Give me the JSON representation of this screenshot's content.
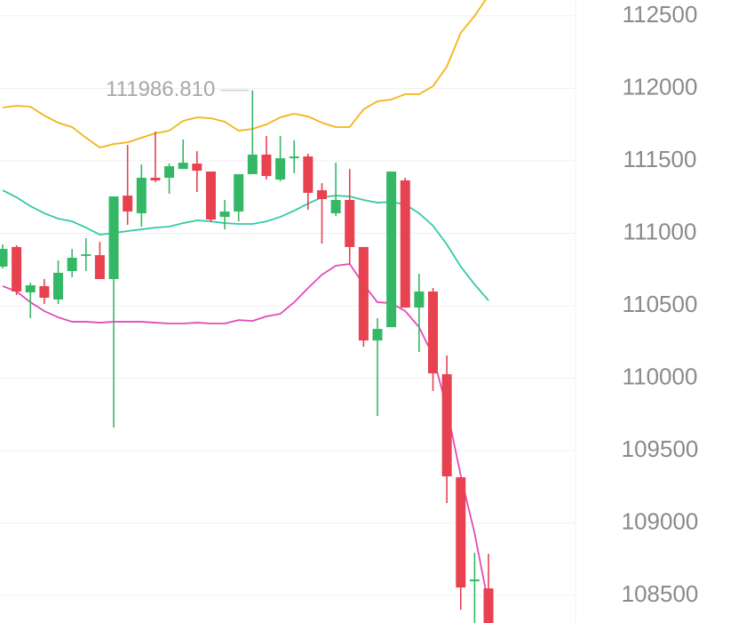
{
  "chart_data": {
    "type": "candlestick",
    "ylim": [
      108310,
      112610
    ],
    "yticks": [
      108500,
      109000,
      109500,
      110000,
      110500,
      111000,
      111500,
      112000,
      112500
    ],
    "grid": true,
    "up_color": "#35b865",
    "down_color": "#e8414f",
    "high_label": "111986.810",
    "high_label_index": 18,
    "open": [
      110770,
      110905,
      110592,
      110635,
      110543,
      110739,
      110843,
      110849,
      110684,
      111260,
      111138,
      111383,
      111383,
      111444,
      111481,
      111426,
      111113,
      111150,
      111408,
      111543,
      111371,
      111518,
      111530,
      111297,
      111138,
      111230,
      110905,
      110260,
      110352,
      111365,
      110487,
      110598,
      110027,
      109316,
      108598,
      108549
    ],
    "high": [
      110923,
      110917,
      110659,
      110684,
      110812,
      110892,
      110966,
      110941,
      111254,
      111610,
      111475,
      111702,
      111481,
      111647,
      111567,
      111426,
      111230,
      111408,
      111986.81,
      111671,
      111671,
      111641,
      111549,
      111346,
      111487,
      111444,
      110905,
      110414,
      111426,
      111383,
      110720,
      110622,
      110156,
      109316,
      108794,
      108788
    ],
    "low": [
      110757,
      110573,
      110414,
      110512,
      110512,
      110696,
      110739,
      110684,
      109659,
      111058,
      111046,
      111352,
      111273,
      111444,
      111285,
      111076,
      111027,
      111082,
      111408,
      111371,
      111358,
      111414,
      111162,
      110929,
      111119,
      110782,
      110217,
      109739,
      110352,
      110487,
      110181,
      109911,
      109138,
      108401,
      108285,
      108131
    ],
    "close": [
      110892,
      110598,
      110641,
      110555,
      110727,
      110831,
      110855,
      110684,
      111254,
      111150,
      111383,
      111365,
      111463,
      111487,
      111432,
      111095,
      111150,
      111408,
      111543,
      111395,
      111518,
      111530,
      111279,
      111236,
      111230,
      110905,
      110260,
      110340,
      111426,
      110487,
      110598,
      110033,
      109322,
      108555,
      108610,
      108193
    ],
    "series": [
      {
        "color": "#f2b418",
        "values": [
          111868,
          111880,
          111874,
          111812,
          111763,
          111733,
          111659,
          111592,
          111616,
          111628,
          111659,
          111690,
          111708,
          111776,
          111800,
          111794,
          111770,
          111708,
          111720,
          111751,
          111800,
          111825,
          111806,
          111763,
          111733,
          111733,
          111855,
          111911,
          111923,
          111960,
          111960,
          112015,
          112150,
          112383,
          112500,
          112641
        ]
      },
      {
        "color": "#35c9a8",
        "values": [
          111297,
          111248,
          111187,
          111138,
          111101,
          111082,
          111039,
          110990,
          111003,
          111015,
          111027,
          111039,
          111046,
          111070,
          111089,
          111082,
          111070,
          111064,
          111064,
          111082,
          111113,
          111156,
          111205,
          111248,
          111260,
          111254,
          111230,
          111211,
          111217,
          111199,
          111138,
          111052,
          110923,
          110770,
          110647,
          110536
        ]
      },
      {
        "color": "#e04cb8",
        "values": [
          110635,
          110598,
          110524,
          110463,
          110420,
          110389,
          110389,
          110383,
          110389,
          110389,
          110389,
          110383,
          110377,
          110377,
          110383,
          110377,
          110377,
          110401,
          110395,
          110426,
          110444,
          110524,
          110622,
          110714,
          110776,
          110788,
          110647,
          110524,
          110518,
          110463,
          110352,
          110156,
          109788,
          109328,
          108929,
          108438
        ]
      }
    ]
  }
}
